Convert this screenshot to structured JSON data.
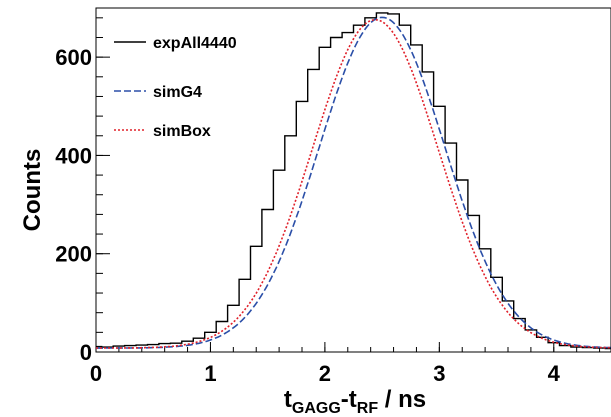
{
  "chart_data": {
    "type": "line",
    "title": "",
    "xlabel": {
      "base": "t",
      "sub1": "GAGG",
      "mid": "-t",
      "sub2": "RF",
      "tail": " / ns"
    },
    "ylabel": "Counts",
    "xlim": [
      0,
      4.5
    ],
    "ylim": [
      0,
      700
    ],
    "xticks": [
      0,
      1,
      2,
      3,
      4
    ],
    "xtick_labels": [
      "0",
      "1",
      "2",
      "3",
      "4"
    ],
    "yticks": [
      0,
      200,
      400,
      600
    ],
    "ytick_labels": [
      "0",
      "200",
      "400",
      "600"
    ],
    "grid": false,
    "legend_position": "top-left",
    "series": [
      {
        "name": "expAll4440",
        "style": "histogram",
        "color": "#000000",
        "x": [
          0.0,
          0.1,
          0.2,
          0.3,
          0.4,
          0.5,
          0.6,
          0.7,
          0.8,
          0.9,
          1.0,
          1.1,
          1.2,
          1.3,
          1.4,
          1.5,
          1.6,
          1.7,
          1.8,
          1.9,
          2.0,
          2.1,
          2.2,
          2.3,
          2.4,
          2.5,
          2.6,
          2.7,
          2.8,
          2.9,
          3.0,
          3.1,
          3.2,
          3.3,
          3.4,
          3.5,
          3.6,
          3.7,
          3.8,
          3.9,
          4.0,
          4.1,
          4.2,
          4.3,
          4.4,
          4.5
        ],
        "y": [
          11,
          10,
          12,
          13,
          14,
          15,
          17,
          18,
          22,
          28,
          40,
          62,
          95,
          148,
          215,
          290,
          370,
          440,
          510,
          575,
          620,
          640,
          650,
          665,
          680,
          690,
          688,
          665,
          625,
          570,
          500,
          425,
          350,
          278,
          210,
          152,
          104,
          68,
          45,
          30,
          19,
          13,
          10,
          9,
          8,
          7
        ]
      },
      {
        "name": "simG4",
        "style": "dashed",
        "color": "#2b4fa8",
        "mean": 2.5,
        "sigma": 0.55,
        "amplitude": 673,
        "offset": 8
      },
      {
        "name": "simBox",
        "style": "dotted",
        "color": "#e0202a",
        "mean": 2.44,
        "sigma": 0.55,
        "amplitude": 668,
        "offset": 8
      }
    ]
  }
}
